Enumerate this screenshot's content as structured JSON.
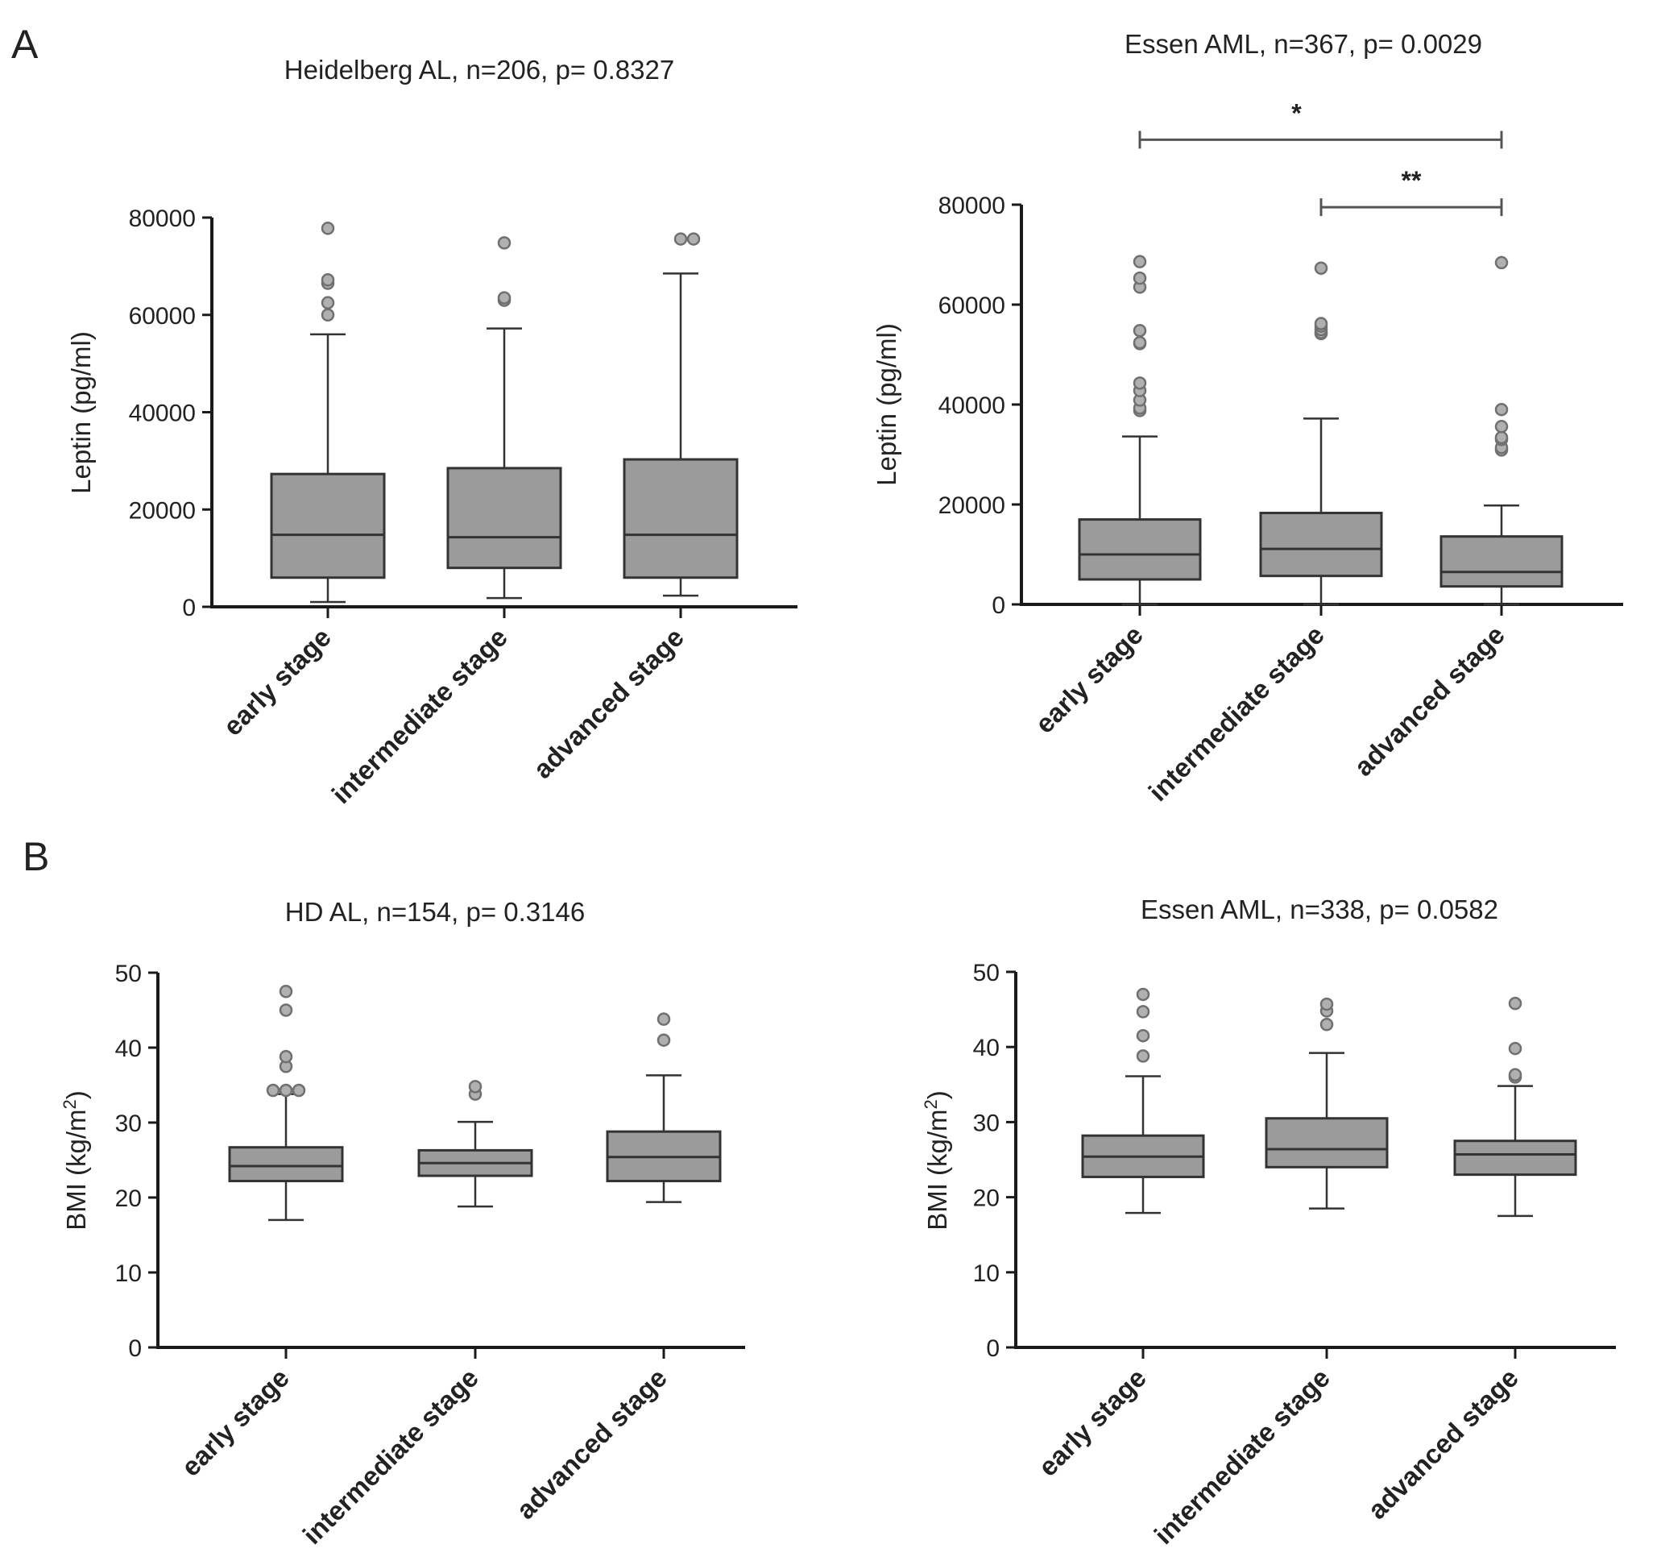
{
  "panels": [
    {
      "label": "A"
    },
    {
      "label": "B"
    }
  ],
  "colors": {
    "box_fill": "#9b9b9b",
    "box_stroke": "#333333",
    "outlier_fill": "#b0b0b0",
    "outlier_stroke": "#707070",
    "axis": "#1a1a1a"
  },
  "chart_data": [
    {
      "type": "boxplot",
      "title": "Heidelberg AL, n=206, p= 0.8327",
      "ylabel": "Leptin (pg/ml)",
      "ylim": [
        0,
        80000
      ],
      "yticks": [
        0,
        20000,
        40000,
        60000,
        80000
      ],
      "categories": [
        "early stage",
        "intermediate stage",
        "advanced stage"
      ],
      "boxes": [
        {
          "whisker_low": 1000,
          "q1": 6000,
          "median": 14800,
          "q3": 27300,
          "whisker_high": 56000,
          "outliers": [
            60000,
            62500,
            66500,
            67200,
            77800
          ]
        },
        {
          "whisker_low": 1800,
          "q1": 8000,
          "median": 14300,
          "q3": 28500,
          "whisker_high": 57200,
          "outliers": [
            63000,
            63500,
            74800
          ]
        },
        {
          "whisker_low": 2300,
          "q1": 6000,
          "median": 14800,
          "q3": 30300,
          "whisker_high": 68500,
          "outliers": [
            75600,
            75600
          ]
        }
      ],
      "significance": []
    },
    {
      "type": "boxplot",
      "title": "Essen AML, n=367, p= 0.0029",
      "ylabel": "Leptin (pg/ml)",
      "ylim": [
        0,
        80000
      ],
      "yticks": [
        0,
        20000,
        40000,
        60000,
        80000
      ],
      "categories": [
        "early stage",
        "intermediate stage",
        "advanced stage"
      ],
      "boxes": [
        {
          "whisker_low": 0,
          "q1": 5000,
          "median": 10000,
          "q3": 17000,
          "whisker_high": 33600,
          "outliers": [
            38800,
            39300,
            40900,
            42800,
            44300,
            52200,
            52400,
            54800,
            63500,
            65300,
            68600
          ]
        },
        {
          "whisker_low": 0,
          "q1": 5700,
          "median": 11100,
          "q3": 18300,
          "whisker_high": 37200,
          "outliers": [
            54200,
            54400,
            55000,
            55700,
            56200,
            67300
          ]
        },
        {
          "whisker_low": 0,
          "q1": 3600,
          "median": 6500,
          "q3": 13600,
          "whisker_high": 19800,
          "outliers": [
            30900,
            31400,
            33000,
            33400,
            35600,
            39000,
            68400
          ]
        }
      ],
      "significance": [
        {
          "from": 0,
          "to": 2,
          "label": "*",
          "level": 93000
        },
        {
          "from": 1,
          "to": 2,
          "label": "**",
          "level": 79500
        }
      ]
    },
    {
      "type": "boxplot",
      "title": "HD AL, n=154, p= 0.3146",
      "ylabel": "BMI (kg/m",
      "ylabel_superscript": "2",
      "ylabel_suffix": ")",
      "ylim": [
        0,
        50
      ],
      "yticks": [
        0,
        10,
        20,
        30,
        40,
        50
      ],
      "categories": [
        "early stage",
        "intermediate stage",
        "advanced stage"
      ],
      "boxes": [
        {
          "whisker_low": 17,
          "q1": 22.2,
          "median": 24.2,
          "q3": 26.7,
          "whisker_high": 33.8,
          "outliers": [
            34.3,
            34.3,
            34.3,
            37.5,
            38.8,
            45,
            47.5
          ]
        },
        {
          "whisker_low": 18.8,
          "q1": 22.9,
          "median": 24.6,
          "q3": 26.3,
          "whisker_high": 30.1,
          "outliers": [
            33.8,
            34.8
          ]
        },
        {
          "whisker_low": 19.4,
          "q1": 22.2,
          "median": 25.4,
          "q3": 28.8,
          "whisker_high": 36.3,
          "outliers": [
            41,
            43.8
          ]
        }
      ],
      "significance": []
    },
    {
      "type": "boxplot",
      "title": "Essen AML, n=338, p= 0.0582",
      "ylabel": "BMI (kg/m",
      "ylabel_superscript": "2",
      "ylabel_suffix": ")",
      "ylim": [
        0,
        50
      ],
      "yticks": [
        0,
        10,
        20,
        30,
        40,
        50
      ],
      "categories": [
        "early stage",
        "intermediate stage",
        "advanced stage"
      ],
      "boxes": [
        {
          "whisker_low": 17.9,
          "q1": 22.7,
          "median": 25.4,
          "q3": 28.2,
          "whisker_high": 36.1,
          "outliers": [
            38.8,
            41.5,
            44.7,
            47
          ]
        },
        {
          "whisker_low": 18.5,
          "q1": 24,
          "median": 26.4,
          "q3": 30.5,
          "whisker_high": 39.2,
          "outliers": [
            43,
            44.8,
            45.7
          ]
        },
        {
          "whisker_low": 17.5,
          "q1": 23,
          "median": 25.7,
          "q3": 27.5,
          "whisker_high": 34.8,
          "outliers": [
            36,
            36.3,
            39.8,
            45.8
          ]
        }
      ],
      "significance": []
    }
  ]
}
